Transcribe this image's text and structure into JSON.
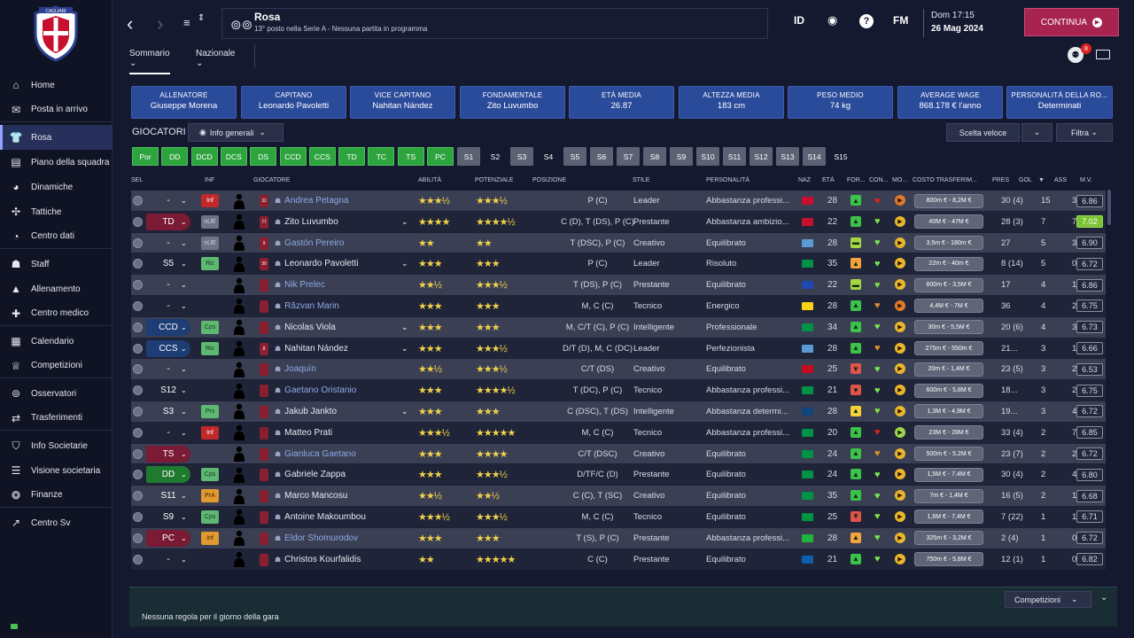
{
  "club": {
    "name": "CAGLIARI"
  },
  "sidebar": {
    "items": [
      {
        "label": "Home",
        "icon": "home-icon",
        "glyph": "⌂"
      },
      {
        "label": "Posta in arrivo",
        "icon": "mail-icon",
        "glyph": "✉"
      },
      {
        "label": "Rosa",
        "icon": "squad-icon",
        "glyph": "👕"
      },
      {
        "label": "Piano della squadra",
        "icon": "plan-icon",
        "glyph": "▤"
      },
      {
        "label": "Dinamiche",
        "icon": "dynamics-icon",
        "glyph": "◕"
      },
      {
        "label": "Tattiche",
        "icon": "tactics-icon",
        "glyph": "✣"
      },
      {
        "label": "Centro dati",
        "icon": "data-icon",
        "glyph": "◔"
      },
      {
        "label": "Staff",
        "icon": "staff-icon",
        "glyph": "☗"
      },
      {
        "label": "Allenamento",
        "icon": "training-icon",
        "glyph": "▲"
      },
      {
        "label": "Centro medico",
        "icon": "medical-icon",
        "glyph": "✚"
      },
      {
        "label": "Calendario",
        "icon": "calendar-icon",
        "glyph": "▦"
      },
      {
        "label": "Competizioni",
        "icon": "trophy-icon",
        "glyph": "♕"
      },
      {
        "label": "Osservatori",
        "icon": "binoculars-icon",
        "glyph": "⊚"
      },
      {
        "label": "Trasferimenti",
        "icon": "transfer-icon",
        "glyph": "⇄"
      },
      {
        "label": "Info Societarie",
        "icon": "shield-icon",
        "glyph": "⛉"
      },
      {
        "label": "Visione societaria",
        "icon": "vision-icon",
        "glyph": "☰"
      },
      {
        "label": "Finanze",
        "icon": "finance-icon",
        "glyph": "❂"
      },
      {
        "label": "Centro Sv",
        "icon": "development-icon",
        "glyph": "↗"
      }
    ]
  },
  "header": {
    "title": "Rosa",
    "subtitle": "13° posto nella Serie A - Nessuna partita in programma",
    "icons": [
      "ID",
      "FM"
    ],
    "date_time": "Dom 17:15",
    "date": "26 Mag 2024",
    "continue_label": "CONTINUA",
    "notification_count": "8"
  },
  "subtabs": [
    {
      "label": "Sommario"
    },
    {
      "label": "Nazionale"
    }
  ],
  "info_cards": [
    {
      "title": "ALLENATORE",
      "value": "Giuseppe Morena"
    },
    {
      "title": "CAPITANO",
      "value": "Leonardo Pavoletti"
    },
    {
      "title": "VICE CAPITANO",
      "value": "Nahitan Nández"
    },
    {
      "title": "FONDAMENTALE",
      "value": "Zito Luvumbo"
    },
    {
      "title": "ETÀ MEDIA",
      "value": "26.87"
    },
    {
      "title": "ALTEZZA MEDIA",
      "value": "183 cm"
    },
    {
      "title": "PESO MEDIO",
      "value": "74 kg"
    },
    {
      "title": "AVERAGE WAGE",
      "value": "868.178 € l'anno"
    },
    {
      "title": "PERSONALITÀ DELLA RO...",
      "value": "Determinati"
    }
  ],
  "toolbar": {
    "giocatori_label": "GIOCATORI",
    "view_label": "Info generali",
    "quick_label": "Scelta veloce",
    "filter_label": "Filtra"
  },
  "chips": [
    "Por",
    "DD",
    "DCD",
    "DCS",
    "DS",
    "CCD",
    "CCS",
    "TD",
    "TC",
    "TS",
    "PC",
    "S1",
    "S2",
    "S3",
    "S4",
    "S5",
    "S6",
    "S7",
    "S8",
    "S9",
    "S10",
    "S11",
    "S12",
    "S13",
    "S14",
    "S15"
  ],
  "columns": {
    "sel": "SEL",
    "inf": "INF",
    "giocatore": "GIOCATORE",
    "abilita": "ABILITÀ",
    "potenziale": "POTENZIALE",
    "posizione": "POSIZIONE",
    "stile": "STILE",
    "personalita": "PERSONALITÀ",
    "naz": "NAZ",
    "eta": "ETÀ",
    "forma": "FOR...",
    "cond": "CON...",
    "morale": "MO...",
    "costo": "COSTO TRASFERIM...",
    "pres": "PRES",
    "gol": "GOL",
    "ass": "ASS",
    "mv": "M.V."
  },
  "players": [
    {
      "role": "-",
      "role_style": "none",
      "inf": "Inf",
      "inf_style": "red",
      "num": "32",
      "name": "Andrea Petagna",
      "name_style": "blue",
      "abil": "★★★½",
      "pot": "★★★½",
      "pos": "P (C)",
      "stile": "Leader",
      "pers": "Abbastanza professi...",
      "flag": "#c8102e",
      "eta": "28",
      "forma": "green",
      "cond": "#d22",
      "mor": "#e07a2a",
      "costo": "800m € - 8,2M €",
      "pres": "30 (4)",
      "gol": "15",
      "ass": "3",
      "mv": "6.86",
      "mv_hi": false,
      "exp": false
    },
    {
      "role": "TD",
      "role_style": "red",
      "inf": "nUE",
      "inf_style": "grey",
      "num": "77",
      "name": "Zito Luvumbo",
      "name_style": "white",
      "abil": "★★★★",
      "pot": "★★★★½",
      "pos": "C (D), T (DS), P (C)",
      "stile": "Prestante",
      "pers": "Abbastanza ambizio...",
      "flag": "#c8102e",
      "eta": "22",
      "forma": "green",
      "cond": "#7ce34a",
      "mor": "#e9b62c",
      "costo": "40M € - 47M €",
      "pres": "28 (3)",
      "gol": "7",
      "ass": "7",
      "mv": "7.02",
      "mv_hi": true,
      "exp": true
    },
    {
      "role": "-",
      "role_style": "none",
      "inf": "nUE",
      "inf_style": "grey",
      "num": "9",
      "name": "Gastón Pereiro",
      "name_style": "blue",
      "abil": "★★",
      "pot": "★★",
      "pos": "T (DSC), P (C)",
      "stile": "Creativo",
      "pers": "Equilibrato",
      "flag": "#5b9bd5",
      "eta": "28",
      "forma": "yellowgreen",
      "cond": "#7ce34a",
      "mor": "#e9b62c",
      "costo": "3,5m € - 180m €",
      "pres": "27",
      "gol": "5",
      "ass": "3",
      "mv": "6.90",
      "mv_hi": false,
      "exp": false
    },
    {
      "role": "S5",
      "role_style": "none",
      "inf": "Ric",
      "inf_style": "green",
      "num": "30",
      "name": "Leonardo Pavoletti",
      "name_style": "white",
      "abil": "★★★",
      "pot": "★★★",
      "pos": "P (C)",
      "stile": "Leader",
      "pers": "Risoluto",
      "flag": "#009246",
      "eta": "35",
      "forma": "orange",
      "cond": "#7ce34a",
      "mor": "#e9b62c",
      "costo": "22m € - 40m €",
      "pres": "8 (14)",
      "gol": "5",
      "ass": "0",
      "mv": "6.72",
      "mv_hi": false,
      "exp": true
    },
    {
      "role": "-",
      "role_style": "none",
      "inf": "",
      "inf_style": "",
      "num": "",
      "name": "Nik Prelec",
      "name_style": "blue",
      "abil": "★★½",
      "pot": "★★★½",
      "pos": "T (DS), P (C)",
      "stile": "Prestante",
      "pers": "Equilibrato",
      "flag": "#1f49b0",
      "eta": "22",
      "forma": "yellowgreen",
      "cond": "#7ce34a",
      "mor": "#e9b62c",
      "costo": "600m € - 3,5M €",
      "pres": "17",
      "gol": "4",
      "ass": "1",
      "mv": "6.86",
      "mv_hi": false,
      "exp": false
    },
    {
      "role": "-",
      "role_style": "none",
      "inf": "",
      "inf_style": "",
      "num": "",
      "name": "Răzvan Marin",
      "name_style": "blue",
      "abil": "★★★",
      "pot": "★★★",
      "pos": "M, C (C)",
      "stile": "Tecnico",
      "pers": "Energico",
      "flag": "#fcd116",
      "eta": "28",
      "forma": "green",
      "cond": "#e0902a",
      "mor": "#e07a2a",
      "costo": "4,4M € - 7M €",
      "pres": "36",
      "gol": "4",
      "ass": "2",
      "mv": "6.75",
      "mv_hi": false,
      "exp": false
    },
    {
      "role": "CCD",
      "role_style": "blue",
      "inf": "Cps",
      "inf_style": "green",
      "num": "",
      "name": "Nicolas Viola",
      "name_style": "white",
      "abil": "★★★",
      "pot": "★★★",
      "pos": "M, C/T (C), P (C)",
      "stile": "Intelligente",
      "pers": "Professionale",
      "flag": "#009246",
      "eta": "34",
      "forma": "green",
      "cond": "#7ce34a",
      "mor": "#e9b62c",
      "costo": "30m € - 5,5M €",
      "pres": "20 (6)",
      "gol": "4",
      "ass": "3",
      "mv": "6.73",
      "mv_hi": false,
      "exp": true
    },
    {
      "role": "CCS",
      "role_style": "blue",
      "inf": "Ric",
      "inf_style": "green",
      "num": "8",
      "name": "Nahitan Nández",
      "name_style": "white",
      "abil": "★★★",
      "pot": "★★★½",
      "pos": "D/T (D), M, C (DC)",
      "stile": "Leader",
      "pers": "Perfezionista",
      "flag": "#5b9bd5",
      "eta": "28",
      "forma": "green",
      "cond": "#e0902a",
      "mor": "#e9b62c",
      "costo": "275m € - 550m €",
      "pres": "21...",
      "gol": "3",
      "ass": "1",
      "mv": "6.66",
      "mv_hi": false,
      "exp": true
    },
    {
      "role": "-",
      "role_style": "none",
      "inf": "",
      "inf_style": "",
      "num": "",
      "name": "Joaquín",
      "name_style": "blue",
      "abil": "★★½",
      "pot": "★★★½",
      "pos": "C/T (DS)",
      "stile": "Creativo",
      "pers": "Equilibrato",
      "flag": "#c60b1e",
      "eta": "25",
      "forma": "red",
      "cond": "#7ce34a",
      "mor": "#e9b62c",
      "costo": "20m € - 1,4M €",
      "pres": "23 (5)",
      "gol": "3",
      "ass": "2",
      "mv": "6.53",
      "mv_hi": false,
      "exp": false
    },
    {
      "role": "S12",
      "role_style": "none",
      "inf": "",
      "inf_style": "",
      "num": "",
      "name": "Gaetano Oristanio",
      "name_style": "blue",
      "abil": "★★★",
      "pot": "★★★★½",
      "pos": "T (DC), P (C)",
      "stile": "Tecnico",
      "pers": "Abbastanza professi...",
      "flag": "#009246",
      "eta": "21",
      "forma": "red",
      "cond": "#7ce34a",
      "mor": "#e9b62c",
      "costo": "600m € - 5,8M €",
      "pres": "18...",
      "gol": "3",
      "ass": "2",
      "mv": "6.75",
      "mv_hi": false,
      "exp": false
    },
    {
      "role": "S3",
      "role_style": "none",
      "inf": "Prs",
      "inf_style": "green",
      "num": "",
      "name": "Jakub Jankto",
      "name_style": "white",
      "abil": "★★★",
      "pot": "★★★",
      "pos": "C (DSC), T (DS)",
      "stile": "Intelligente",
      "pers": "Abbastanza determi...",
      "flag": "#11457e",
      "eta": "28",
      "forma": "yellow",
      "cond": "#7ce34a",
      "mor": "#e9b62c",
      "costo": "1,3M € - 4,9M €",
      "pres": "19...",
      "gol": "3",
      "ass": "4",
      "mv": "6.72",
      "mv_hi": false,
      "exp": true
    },
    {
      "role": "-",
      "role_style": "none",
      "inf": "Inf",
      "inf_style": "red",
      "num": "",
      "name": "Matteo Prati",
      "name_style": "white",
      "abil": "★★★½",
      "pot": "★★★★★",
      "pos": "M, C (C)",
      "stile": "Tecnico",
      "pers": "Abbastanza professi...",
      "flag": "#009246",
      "eta": "20",
      "forma": "green",
      "cond": "#d22",
      "mor": "#9bd84a",
      "costo": "23M € - 28M €",
      "pres": "33 (4)",
      "gol": "2",
      "ass": "7",
      "mv": "6.85",
      "mv_hi": false,
      "exp": false
    },
    {
      "role": "TS",
      "role_style": "red",
      "inf": "",
      "inf_style": "",
      "num": "",
      "name": "Gianluca Gaetano",
      "name_style": "blue",
      "abil": "★★★",
      "pot": "★★★★",
      "pos": "C/T (DSC)",
      "stile": "Creativo",
      "pers": "Equilibrato",
      "flag": "#009246",
      "eta": "24",
      "forma": "green",
      "cond": "#e0902a",
      "mor": "#e9b62c",
      "costo": "500m € - 5,2M €",
      "pres": "23 (7)",
      "gol": "2",
      "ass": "2",
      "mv": "6.72",
      "mv_hi": false,
      "exp": false
    },
    {
      "role": "DD",
      "role_style": "green",
      "inf": "Cps",
      "inf_style": "green",
      "num": "",
      "name": "Gabriele Zappa",
      "name_style": "white",
      "abil": "★★★",
      "pot": "★★★½",
      "pos": "D/TF/C (D)",
      "stile": "Prestante",
      "pers": "Equilibrato",
      "flag": "#009246",
      "eta": "24",
      "forma": "green",
      "cond": "#7ce34a",
      "mor": "#e9b62c",
      "costo": "1,5M € - 7,4M €",
      "pres": "30 (4)",
      "gol": "2",
      "ass": "4",
      "mv": "6.80",
      "mv_hi": false,
      "exp": false
    },
    {
      "role": "S11",
      "role_style": "none",
      "inf": "PrA",
      "inf_style": "orange",
      "num": "",
      "name": "Marco Mancosu",
      "name_style": "white",
      "abil": "★★½",
      "pot": "★★½",
      "pos": "C (C), T (SC)",
      "stile": "Creativo",
      "pers": "Equilibrato",
      "flag": "#009246",
      "eta": "35",
      "forma": "green",
      "cond": "#7ce34a",
      "mor": "#e9b62c",
      "costo": "7m € - 1,4M €",
      "pres": "16 (5)",
      "gol": "2",
      "ass": "1",
      "mv": "6.68",
      "mv_hi": false,
      "exp": false
    },
    {
      "role": "S9",
      "role_style": "none",
      "inf": "Cps",
      "inf_style": "green",
      "num": "",
      "name": "Antoine Makoumbou",
      "name_style": "white",
      "abil": "★★★½",
      "pot": "★★★½",
      "pos": "M, C (C)",
      "stile": "Tecnico",
      "pers": "Equilibrato",
      "flag": "#009543",
      "eta": "25",
      "forma": "red",
      "cond": "#7ce34a",
      "mor": "#e9b62c",
      "costo": "1,6M € - 7,4M €",
      "pres": "7 (22)",
      "gol": "1",
      "ass": "1",
      "mv": "6.71",
      "mv_hi": false,
      "exp": false
    },
    {
      "role": "PC",
      "role_style": "red",
      "inf": "Inf",
      "inf_style": "orange",
      "num": "",
      "name": "Eldor Shomurodov",
      "name_style": "blue",
      "abil": "★★★",
      "pot": "★★★",
      "pos": "T (S), P (C)",
      "stile": "Prestante",
      "pers": "Abbastanza professi...",
      "flag": "#1eb53a",
      "eta": "28",
      "forma": "orange",
      "cond": "#7ce34a",
      "mor": "#e9b62c",
      "costo": "325m € - 3,2M €",
      "pres": "2 (4)",
      "gol": "1",
      "ass": "0",
      "mv": "6.72",
      "mv_hi": false,
      "exp": false
    },
    {
      "role": "-",
      "role_style": "none",
      "inf": "",
      "inf_style": "",
      "num": "",
      "name": "Christos Kourfalidis",
      "name_style": "white",
      "abil": "★★",
      "pot": "★★★★★",
      "pos": "C (C)",
      "stile": "Prestante",
      "pers": "Equilibrato",
      "flag": "#0d5eaf",
      "eta": "21",
      "forma": "green",
      "cond": "#7ce34a",
      "mor": "#e9b62c",
      "costo": "750m € - 5,8M €",
      "pres": "12 (1)",
      "gol": "1",
      "ass": "0",
      "mv": "6.82",
      "mv_hi": false,
      "exp": false
    }
  ],
  "footer": {
    "rule_text": "Nessuna regola per il giorno della gara",
    "competitions_label": "Competizioni"
  }
}
